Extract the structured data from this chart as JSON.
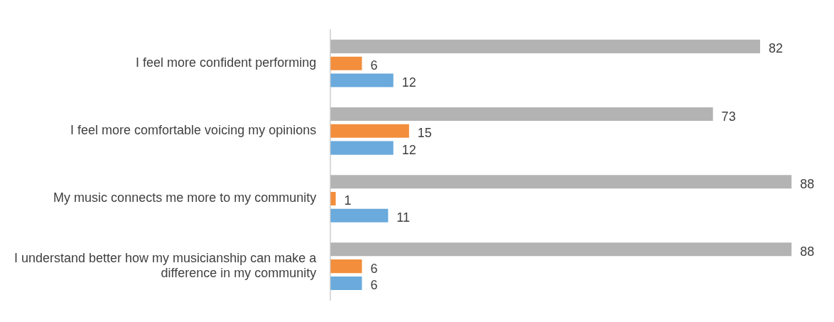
{
  "chart_data": {
    "type": "bar",
    "orientation": "horizontal",
    "data_labels": true,
    "tick_labels": "y",
    "categories": [
      "I feel more confident performing",
      "I feel more comfortable voicing my opinions",
      "My music connects me more to my community",
      "I understand better how my musicianship can make a difference in my community"
    ],
    "series": [
      {
        "color": "#b3b3b3",
        "values": [
          82,
          73,
          88,
          88
        ]
      },
      {
        "color": "#f28e3c",
        "values": [
          6,
          15,
          1,
          6
        ]
      },
      {
        "color": "#6aaadc",
        "values": [
          12,
          12,
          11,
          6
        ]
      }
    ]
  }
}
